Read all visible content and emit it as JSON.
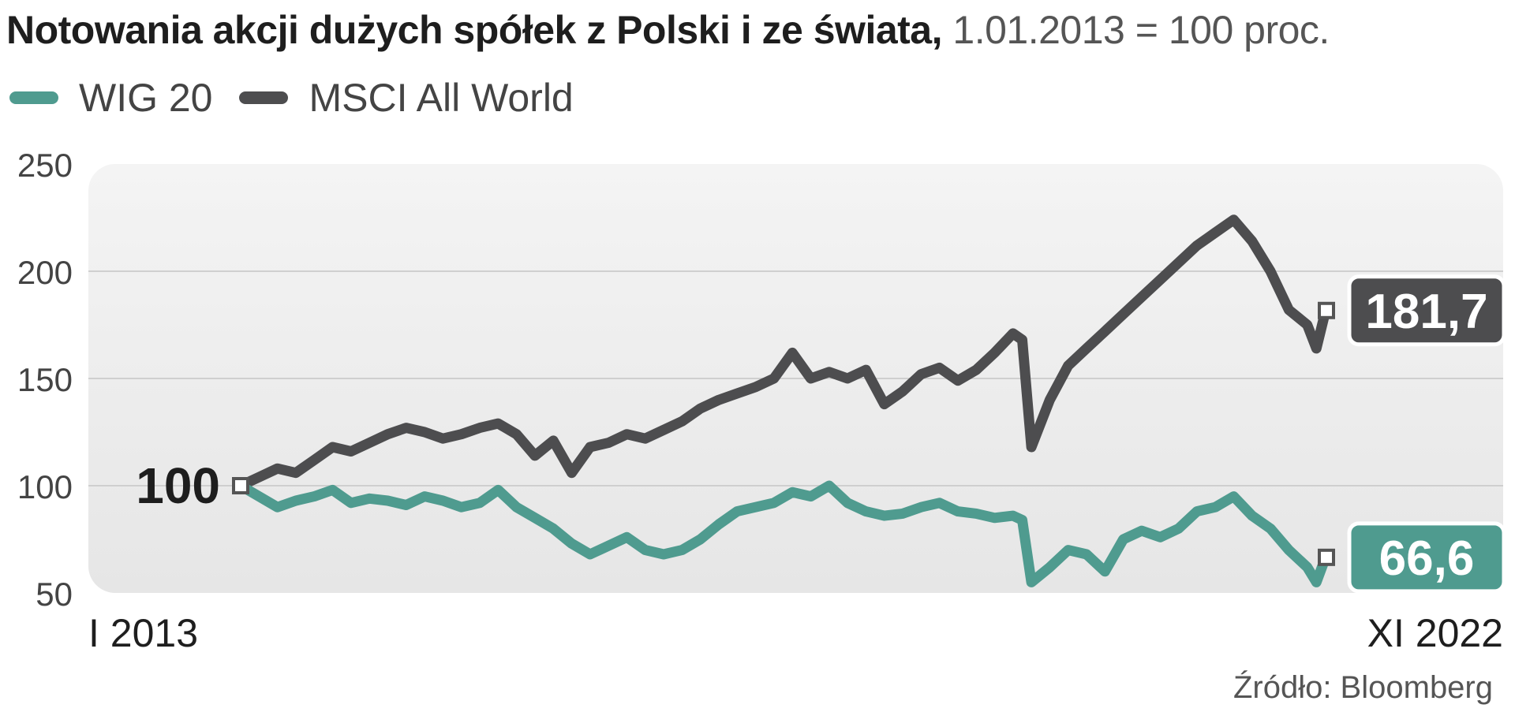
{
  "header": {
    "title_bold": "Notowania akcji dużych spółek z Polski i ze świata,",
    "title_light": "1.01.2013 = 100 proc."
  },
  "legend": {
    "items": [
      {
        "label": "WIG 20",
        "color": "#4f9b8f"
      },
      {
        "label": "MSCI All World",
        "color": "#4d4d4f"
      }
    ]
  },
  "chart_data": {
    "type": "line",
    "title": "Notowania akcji dużych spółek z Polski i ze świata, 1.01.2013 = 100 proc.",
    "ylim": [
      50,
      250
    ],
    "y_ticks": [
      50,
      100,
      150,
      200,
      250
    ],
    "x_labels": {
      "start": "I 2013",
      "end": "XI 2022"
    },
    "x_range": [
      "2013-01",
      "2022-11"
    ],
    "grid": true,
    "legend_position": "top-left",
    "start_label": "100",
    "series": [
      {
        "name": "WIG 20",
        "color": "#4f9b8f",
        "end_label": "66,6",
        "x": [
          "2013-01",
          "2013-03",
          "2013-05",
          "2013-07",
          "2013-09",
          "2013-11",
          "2014-01",
          "2014-03",
          "2014-05",
          "2014-07",
          "2014-09",
          "2014-11",
          "2015-01",
          "2015-03",
          "2015-05",
          "2015-07",
          "2015-09",
          "2015-11",
          "2016-01",
          "2016-03",
          "2016-05",
          "2016-07",
          "2016-09",
          "2016-11",
          "2017-01",
          "2017-03",
          "2017-05",
          "2017-07",
          "2017-09",
          "2017-11",
          "2018-01",
          "2018-03",
          "2018-05",
          "2018-07",
          "2018-09",
          "2018-11",
          "2019-01",
          "2019-03",
          "2019-05",
          "2019-07",
          "2019-09",
          "2019-11",
          "2020-01",
          "2020-02",
          "2020-03",
          "2020-05",
          "2020-07",
          "2020-09",
          "2020-11",
          "2021-01",
          "2021-03",
          "2021-05",
          "2021-07",
          "2021-09",
          "2021-11",
          "2022-01",
          "2022-03",
          "2022-05",
          "2022-07",
          "2022-09",
          "2022-10",
          "2022-11"
        ],
        "values": [
          100,
          95,
          90,
          93,
          95,
          98,
          92,
          94,
          93,
          91,
          95,
          93,
          90,
          92,
          98,
          90,
          85,
          80,
          73,
          68,
          72,
          76,
          70,
          68,
          70,
          75,
          82,
          88,
          90,
          92,
          97,
          95,
          100,
          92,
          88,
          86,
          87,
          90,
          92,
          88,
          87,
          85,
          86,
          84,
          55,
          62,
          70,
          68,
          60,
          75,
          79,
          76,
          80,
          88,
          90,
          95,
          86,
          80,
          70,
          62,
          55,
          66.6
        ]
      },
      {
        "name": "MSCI All World",
        "color": "#4d4d4f",
        "end_label": "181,7",
        "x": [
          "2013-01",
          "2013-03",
          "2013-05",
          "2013-07",
          "2013-09",
          "2013-11",
          "2014-01",
          "2014-03",
          "2014-05",
          "2014-07",
          "2014-09",
          "2014-11",
          "2015-01",
          "2015-03",
          "2015-05",
          "2015-07",
          "2015-09",
          "2015-11",
          "2016-01",
          "2016-03",
          "2016-05",
          "2016-07",
          "2016-09",
          "2016-11",
          "2017-01",
          "2017-03",
          "2017-05",
          "2017-07",
          "2017-09",
          "2017-11",
          "2018-01",
          "2018-03",
          "2018-05",
          "2018-07",
          "2018-09",
          "2018-11",
          "2019-01",
          "2019-03",
          "2019-05",
          "2019-07",
          "2019-09",
          "2019-11",
          "2020-01",
          "2020-02",
          "2020-03",
          "2020-05",
          "2020-07",
          "2020-09",
          "2020-11",
          "2021-01",
          "2021-03",
          "2021-05",
          "2021-07",
          "2021-09",
          "2021-11",
          "2022-01",
          "2022-03",
          "2022-05",
          "2022-07",
          "2022-09",
          "2022-10",
          "2022-11"
        ],
        "values": [
          100,
          104,
          108,
          106,
          112,
          118,
          116,
          120,
          124,
          127,
          125,
          122,
          124,
          127,
          129,
          124,
          114,
          121,
          106,
          118,
          120,
          124,
          122,
          126,
          130,
          136,
          140,
          143,
          146,
          150,
          162,
          150,
          153,
          150,
          154,
          138,
          144,
          152,
          155,
          149,
          154,
          162,
          171,
          168,
          118,
          140,
          156,
          164,
          172,
          180,
          188,
          196,
          204,
          212,
          218,
          224,
          214,
          200,
          182,
          175,
          164,
          181.7
        ]
      }
    ]
  },
  "source": "Źródło: Bloomberg"
}
